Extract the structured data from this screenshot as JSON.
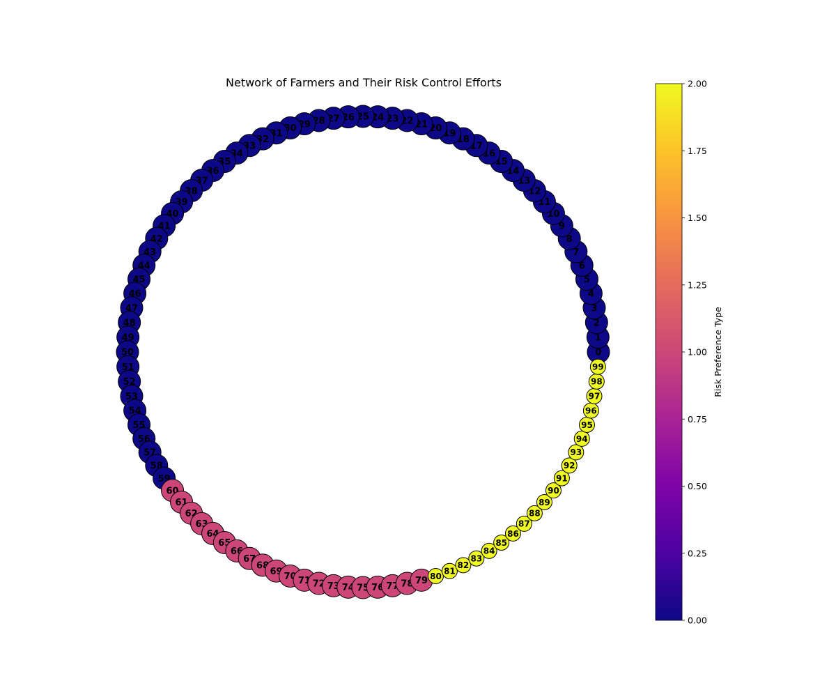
{
  "chart_data": {
    "type": "network",
    "title": "Network of Farmers and Their Risk Control Efforts",
    "layout": "circular",
    "colormap": "plasma",
    "node_groups": [
      {
        "ids_from": 0,
        "ids_to": 59,
        "risk_preference_type": 0,
        "node_size": "large",
        "color": "#0d0887"
      },
      {
        "ids_from": 60,
        "ids_to": 79,
        "risk_preference_type": 1,
        "node_size": "large",
        "color": "#cc4778"
      },
      {
        "ids_from": 80,
        "ids_to": 99,
        "risk_preference_type": 2,
        "node_size": "small",
        "color": "#f0f921"
      }
    ],
    "colorbar": {
      "label": "Risk Preference Type",
      "range": [
        0,
        2
      ],
      "ticks": [
        "0.00",
        "0.25",
        "0.50",
        "0.75",
        "1.00",
        "1.25",
        "1.50",
        "1.75",
        "2.00"
      ],
      "tick_values": [
        0,
        0.25,
        0.5,
        0.75,
        1.0,
        1.25,
        1.5,
        1.75,
        2.0
      ]
    }
  }
}
